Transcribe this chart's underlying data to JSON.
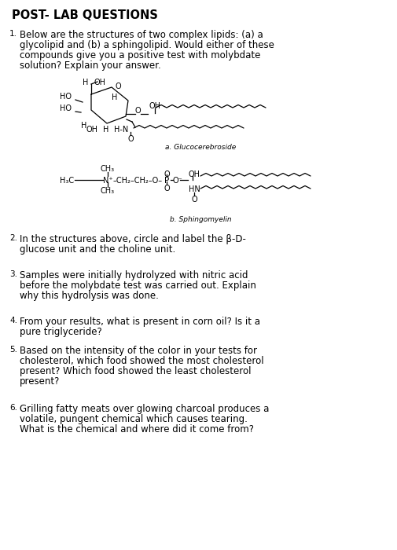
{
  "title": "POST- LAB QUESTIONS",
  "background_color": "#ffffff",
  "text_color": "#000000",
  "label_a": "a. Glucocerebroside",
  "label_b": "b. Sphingomyelin",
  "q1_num": "1.",
  "q1_text_line1": "Below are the structures of two complex lipids: (a) a",
  "q1_text_line2": "glycolipid and (b) a sphingolipid. Would either of these",
  "q1_text_line3": "compounds give you a positive test with molybdate",
  "q1_text_line4": "solution? Explain your answer.",
  "q2_num": "2.",
  "q2_text_line1": "In the structures above, circle and label the β-D-",
  "q2_text_line2": "glucose unit and the choline unit.",
  "q3_num": "3.",
  "q3_text_line1": "Samples were initially hydrolyzed with nitric acid",
  "q3_text_line2": "before the molybdate test was carried out. Explain",
  "q3_text_line3": "why this hydrolysis was done.",
  "q4_num": "4.",
  "q4_text_line1": "From your results, what is present in corn oil? Is it a",
  "q4_text_line2": "pure triglyceride?",
  "q5_num": "5.",
  "q5_text_line1": "Based on the intensity of the color in your tests for",
  "q5_text_line2": "cholesterol, which food showed the most cholesterol",
  "q5_text_line3": "present? Which food showed the least cholesterol",
  "q5_text_line4": "present?",
  "q6_num": "6.",
  "q6_text_line1": "Grilling fatty meats over glowing charcoal produces a",
  "q6_text_line2": "volatile, pungent chemical which causes tearing.",
  "q6_text_line3": "What is the chemical and where did it come from?",
  "fig_width": 5.06,
  "fig_height": 7.0,
  "dpi": 100
}
